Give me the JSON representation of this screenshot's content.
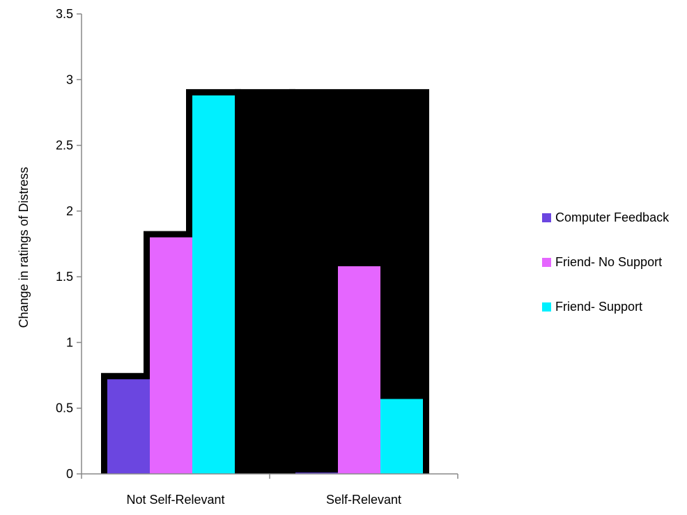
{
  "chart_data": {
    "type": "bar",
    "title": "",
    "xlabel": "",
    "ylabel": "Change in ratings of Distress",
    "ylim": [
      0,
      3.5
    ],
    "yticks": [
      "0",
      "0.5",
      "1",
      "1.5",
      "2",
      "2.5",
      "3",
      "3.5"
    ],
    "categories": [
      "Not Self-Relevant",
      "Self-Relevant"
    ],
    "series": [
      {
        "name": "Computer Feedback",
        "values": [
          0.72,
          0.01
        ],
        "color": "#6B46E0"
      },
      {
        "name": "Friend- No Support",
        "values": [
          1.8,
          1.58
        ],
        "color": "#E566FF"
      },
      {
        "name": "Friend- Support",
        "values": [
          2.88,
          0.57
        ],
        "color": "#00F0FF"
      }
    ],
    "legend_position": "right",
    "grid": false,
    "shadow_color": "#000000"
  }
}
